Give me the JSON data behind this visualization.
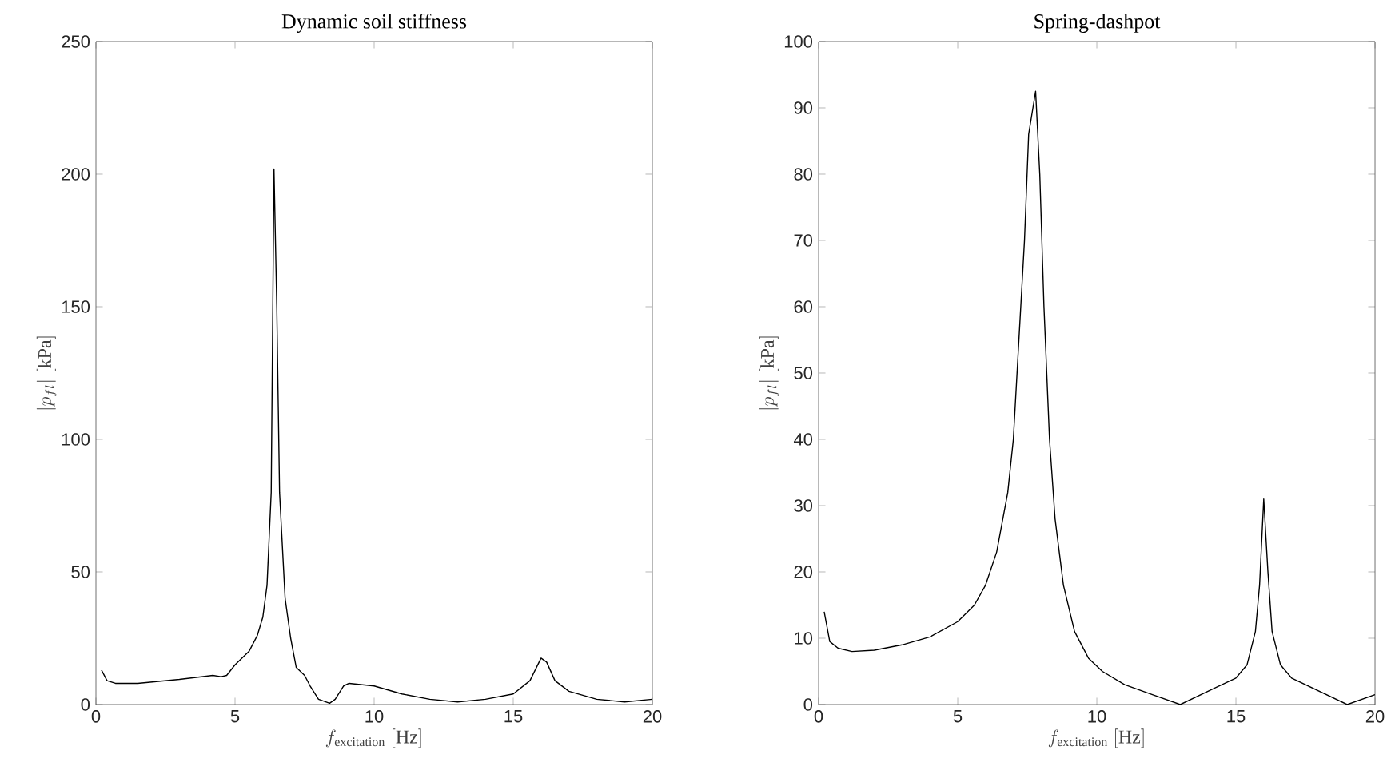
{
  "chart_data": [
    {
      "type": "line",
      "title": "Dynamic soil stiffness",
      "xlabel": "f_{\\mathrm{excitation}}\\ [\\mathrm{Hz}]",
      "ylabel": "|p_{fl}|\\ [\\mathrm{kPa}]",
      "xlim": [
        0,
        20
      ],
      "ylim": [
        0,
        250
      ],
      "xticks": [
        0,
        5,
        10,
        15,
        20
      ],
      "yticks": [
        0,
        50,
        100,
        150,
        200,
        250
      ],
      "series": [
        {
          "color": "#000000",
          "x": [
            0.2,
            0.4,
            0.7,
            1.5,
            3,
            4.2,
            4.5,
            4.7,
            5,
            5.5,
            5.8,
            6.0,
            6.15,
            6.3,
            6.4,
            6.5,
            6.6,
            6.8,
            7.0,
            7.2,
            7.5,
            7.7,
            8.0,
            8.4,
            8.6,
            8.9,
            9.1,
            10,
            11,
            12,
            13,
            14,
            15,
            15.6,
            16.0,
            16.2,
            16.5,
            17,
            18,
            19,
            20
          ],
          "values": [
            13,
            9,
            8,
            8,
            9.5,
            11,
            10.5,
            11,
            15,
            20,
            26,
            33,
            45,
            80,
            202,
            150,
            80,
            40,
            25,
            14,
            11,
            7,
            2,
            0.5,
            2,
            7,
            8,
            7,
            4,
            2,
            1,
            2,
            4,
            9,
            17.5,
            16,
            9,
            5,
            2,
            1,
            2
          ]
        }
      ]
    },
    {
      "type": "line",
      "title": "Spring-dashpot",
      "xlabel": "f_{\\mathrm{excitation}}\\ [\\mathrm{Hz}]",
      "ylabel": "|p_{fl}|\\ [\\mathrm{kPa}]",
      "xlim": [
        0,
        20
      ],
      "ylim": [
        0,
        100
      ],
      "xticks": [
        0,
        5,
        10,
        15,
        20
      ],
      "yticks": [
        0,
        10,
        20,
        30,
        40,
        50,
        60,
        70,
        80,
        90,
        100
      ],
      "series": [
        {
          "color": "#000000",
          "x": [
            0.2,
            0.4,
            0.7,
            1.2,
            2,
            3,
            4,
            5,
            5.6,
            6,
            6.4,
            6.8,
            7.0,
            7.2,
            7.4,
            7.55,
            7.8,
            7.95,
            8.1,
            8.3,
            8.5,
            8.8,
            9.2,
            9.7,
            10.2,
            11,
            12,
            13,
            14,
            15,
            15.4,
            15.7,
            15.85,
            16.0,
            16.15,
            16.3,
            16.6,
            17,
            18,
            19,
            20
          ],
          "values": [
            14,
            9.5,
            8.5,
            8,
            8.2,
            9,
            10.2,
            12.5,
            15,
            18,
            23,
            32,
            40,
            55,
            70,
            86,
            92.5,
            80,
            60,
            40,
            28,
            18,
            11,
            7,
            5,
            3,
            1.5,
            0,
            2,
            4,
            6,
            11,
            18,
            31,
            20,
            11,
            6,
            4,
            2,
            0,
            1.5
          ]
        }
      ]
    }
  ]
}
